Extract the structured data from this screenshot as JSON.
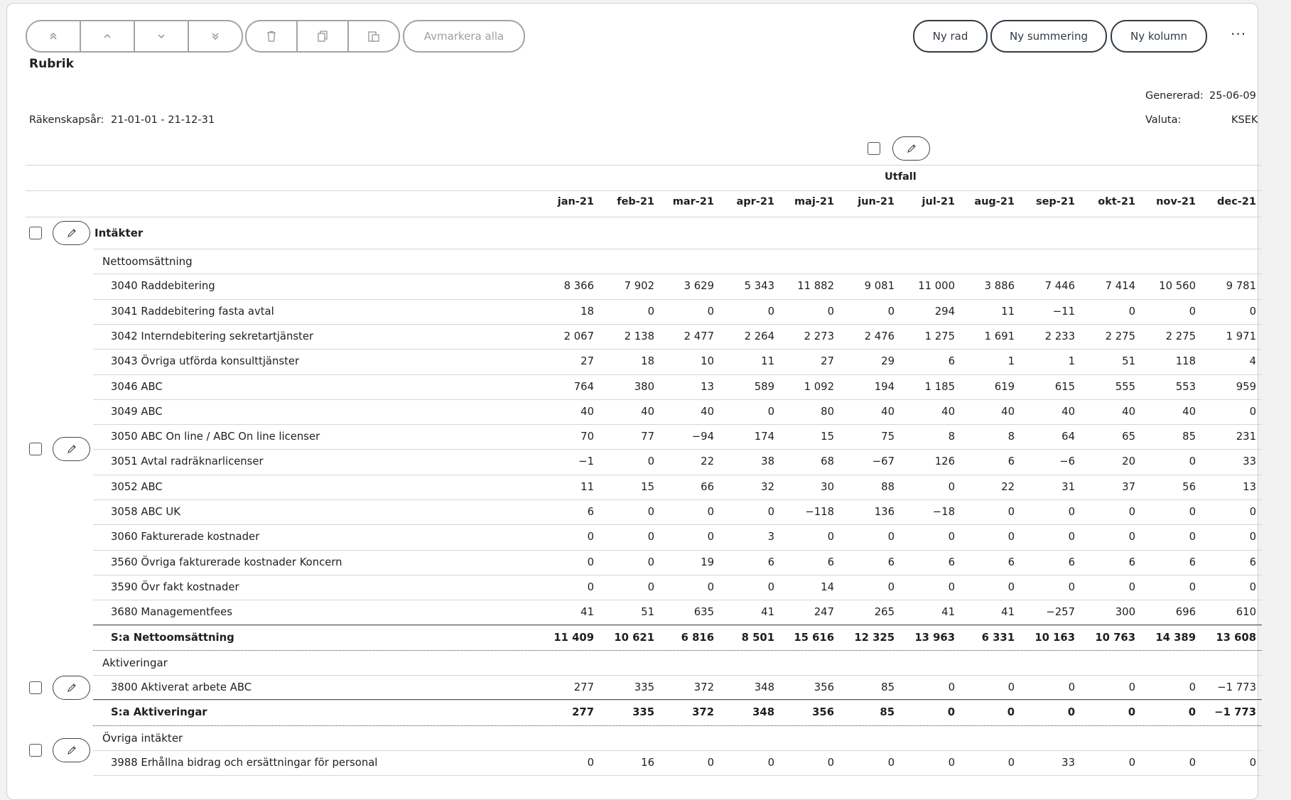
{
  "toolbar": {
    "move_top_title": "Flytta högst upp",
    "move_up_title": "Flytta upp",
    "move_down_title": "Flytta ned",
    "move_bottom_title": "Flytta längst ned",
    "deselect_all": "Avmarkera alla",
    "new_row": "Ny rad",
    "new_sum": "Ny summering",
    "new_column": "Ny kolumn",
    "more": "···"
  },
  "report": {
    "title": "Rubrik",
    "generated_label": "Genererad:",
    "generated_value": "25-06-09",
    "fiscal_label": "Räkenskapsår:",
    "fiscal_value": "21-01-01 - 21-12-31",
    "currency_label": "Valuta:",
    "currency_value": "KSEK"
  },
  "table": {
    "column_group": "Utfall",
    "months": [
      "jan-21",
      "feb-21",
      "mar-21",
      "apr-21",
      "maj-21",
      "jun-21",
      "jul-21",
      "aug-21",
      "sep-21",
      "okt-21",
      "nov-21",
      "dec-21"
    ],
    "top_section": "Intäkter",
    "groups": [
      {
        "name": "Nettoomsättning",
        "rows": [
          {
            "label": "3040 Raddebitering",
            "values": [
              "8 366",
              "7 902",
              "3 629",
              "5 343",
              "11 882",
              "9 081",
              "11 000",
              "3 886",
              "7 446",
              "7 414",
              "10 560",
              "9 781"
            ]
          },
          {
            "label": "3041 Raddebitering fasta avtal",
            "values": [
              "18",
              "0",
              "0",
              "0",
              "0",
              "0",
              "294",
              "11",
              "−11",
              "0",
              "0",
              "0"
            ]
          },
          {
            "label": "3042 Interndebitering sekretartjänster",
            "values": [
              "2 067",
              "2 138",
              "2 477",
              "2 264",
              "2 273",
              "2 476",
              "1 275",
              "1 691",
              "2 233",
              "2 275",
              "2 275",
              "1 971"
            ]
          },
          {
            "label": "3043 Övriga utförda konsulttjänster",
            "values": [
              "27",
              "18",
              "10",
              "11",
              "27",
              "29",
              "6",
              "1",
              "1",
              "51",
              "118",
              "4"
            ]
          },
          {
            "label": "3046 ABC",
            "values": [
              "764",
              "380",
              "13",
              "589",
              "1 092",
              "194",
              "1 185",
              "619",
              "615",
              "555",
              "553",
              "959"
            ]
          },
          {
            "label": "3049 ABC",
            "values": [
              "40",
              "40",
              "40",
              "0",
              "80",
              "40",
              "40",
              "40",
              "40",
              "40",
              "40",
              "0"
            ]
          },
          {
            "label": "3050 ABC On line / ABC On line licenser",
            "values": [
              "70",
              "77",
              "−94",
              "174",
              "15",
              "75",
              "8",
              "8",
              "64",
              "65",
              "85",
              "231"
            ]
          },
          {
            "label": "3051 Avtal radräknarlicenser",
            "values": [
              "−1",
              "0",
              "22",
              "38",
              "68",
              "−67",
              "126",
              "6",
              "−6",
              "20",
              "0",
              "33"
            ]
          },
          {
            "label": "3052 ABC",
            "values": [
              "11",
              "15",
              "66",
              "32",
              "30",
              "88",
              "0",
              "22",
              "31",
              "37",
              "56",
              "13"
            ]
          },
          {
            "label": "3058 ABC UK",
            "values": [
              "6",
              "0",
              "0",
              "0",
              "−118",
              "136",
              "−18",
              "0",
              "0",
              "0",
              "0",
              "0"
            ]
          },
          {
            "label": "3060 Fakturerade kostnader",
            "values": [
              "0",
              "0",
              "0",
              "3",
              "0",
              "0",
              "0",
              "0",
              "0",
              "0",
              "0",
              "0"
            ]
          },
          {
            "label": "3560 Övriga fakturerade kostnader Koncern",
            "values": [
              "0",
              "0",
              "19",
              "6",
              "6",
              "6",
              "6",
              "6",
              "6",
              "6",
              "6",
              "6"
            ]
          },
          {
            "label": "3590 Övr fakt kostnader",
            "values": [
              "0",
              "0",
              "0",
              "0",
              "14",
              "0",
              "0",
              "0",
              "0",
              "0",
              "0",
              "0"
            ]
          },
          {
            "label": "3680 Managementfees",
            "values": [
              "41",
              "51",
              "635",
              "41",
              "247",
              "265",
              "41",
              "41",
              "−257",
              "300",
              "696",
              "610"
            ]
          }
        ],
        "sum": {
          "label": "S:a Nettoomsättning",
          "values": [
            "11 409",
            "10 621",
            "6 816",
            "8 501",
            "15 616",
            "12 325",
            "13 963",
            "6 331",
            "10 163",
            "10 763",
            "14 389",
            "13 608"
          ]
        }
      },
      {
        "name": "Aktiveringar",
        "rows": [
          {
            "label": "3800 Aktiverat arbete ABC",
            "values": [
              "277",
              "335",
              "372",
              "348",
              "356",
              "85",
              "0",
              "0",
              "0",
              "0",
              "0",
              "−1 773"
            ]
          }
        ],
        "sum": {
          "label": "S:a Aktiveringar",
          "values": [
            "277",
            "335",
            "372",
            "348",
            "356",
            "85",
            "0",
            "0",
            "0",
            "0",
            "0",
            "−1 773"
          ]
        }
      },
      {
        "name": "Övriga intäkter",
        "rows": [
          {
            "label": "3988 Erhållna bidrag och ersättningar för personal",
            "values": [
              "0",
              "16",
              "0",
              "0",
              "0",
              "0",
              "0",
              "0",
              "33",
              "0",
              "0",
              "0"
            ]
          }
        ]
      }
    ]
  }
}
